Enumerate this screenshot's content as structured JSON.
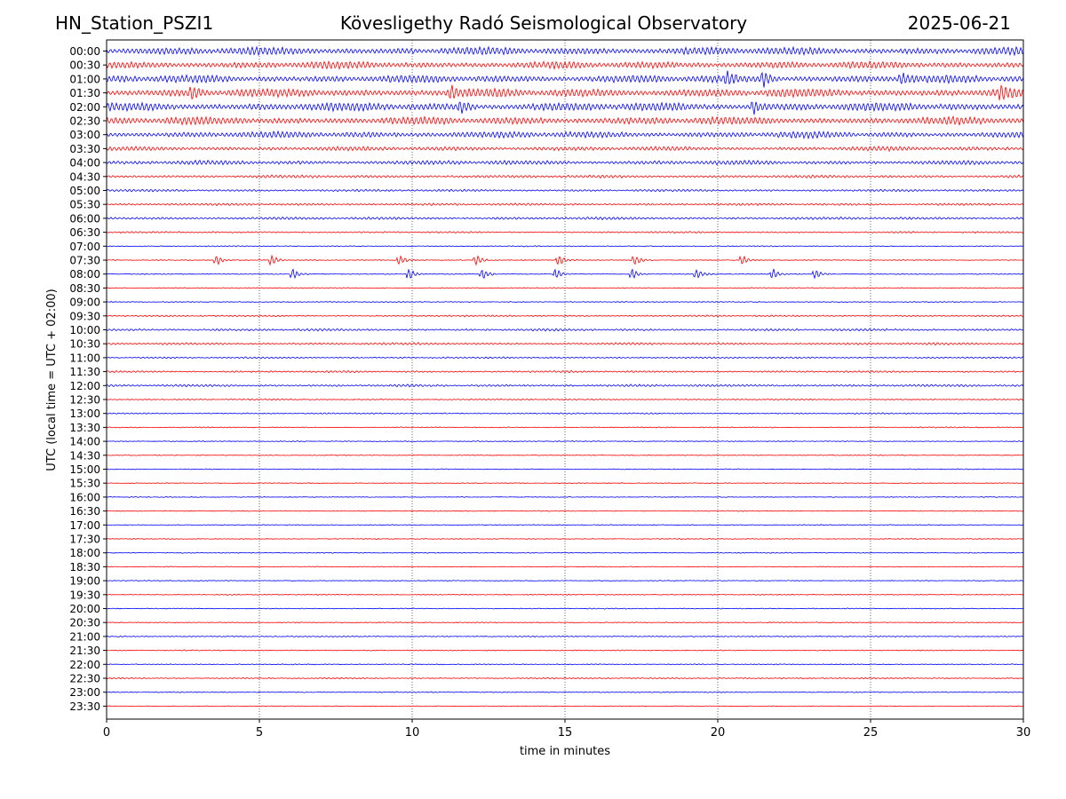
{
  "header": {
    "station": "HN_Station_PSZI1",
    "observatory": "Kövesligethy Radó Seismological Observatory",
    "date": "2025-06-21"
  },
  "chart_data": {
    "type": "line",
    "title": "Kövesligethy Radó Seismological Observatory",
    "xlabel": "time in minutes",
    "ylabel": "UTC (local time = UTC + 02:00)",
    "xlim": [
      0,
      30
    ],
    "xticks": [
      "0",
      "5",
      "10",
      "15",
      "20",
      "25",
      "30"
    ],
    "vertical_gridlines_minutes": [
      5,
      10,
      15,
      20,
      25
    ],
    "grid": "dotted vertical",
    "colors": {
      "even_row": "#0000ff",
      "odd_row": "#ff0000"
    },
    "rows": [
      {
        "label": "00:00",
        "amp": 0.55
      },
      {
        "label": "00:30",
        "amp": 0.5
      },
      {
        "label": "01:00",
        "amp": 0.55
      },
      {
        "label": "01:30",
        "amp": 0.6
      },
      {
        "label": "02:00",
        "amp": 0.6
      },
      {
        "label": "02:30",
        "amp": 0.55
      },
      {
        "label": "03:00",
        "amp": 0.45
      },
      {
        "label": "03:30",
        "amp": 0.3
      },
      {
        "label": "04:00",
        "amp": 0.3
      },
      {
        "label": "04:30",
        "amp": 0.2
      },
      {
        "label": "05:00",
        "amp": 0.15
      },
      {
        "label": "05:30",
        "amp": 0.15
      },
      {
        "label": "06:00",
        "amp": 0.18
      },
      {
        "label": "06:30",
        "amp": 0.1
      },
      {
        "label": "07:00",
        "amp": 0.05
      },
      {
        "label": "07:30",
        "amp": 0.04
      },
      {
        "label": "08:00",
        "amp": 0.04
      },
      {
        "label": "08:30",
        "amp": 0.05
      },
      {
        "label": "09:00",
        "amp": 0.05
      },
      {
        "label": "09:30",
        "amp": 0.1
      },
      {
        "label": "10:00",
        "amp": 0.15
      },
      {
        "label": "10:30",
        "amp": 0.15
      },
      {
        "label": "11:00",
        "amp": 0.1
      },
      {
        "label": "11:30",
        "amp": 0.12
      },
      {
        "label": "12:00",
        "amp": 0.15
      },
      {
        "label": "12:30",
        "amp": 0.08
      },
      {
        "label": "13:00",
        "amp": 0.08
      },
      {
        "label": "13:30",
        "amp": 0.05
      },
      {
        "label": "14:00",
        "amp": 0.04
      },
      {
        "label": "14:30",
        "amp": 0.03
      },
      {
        "label": "15:00",
        "amp": 0.04
      },
      {
        "label": "15:30",
        "amp": 0.03
      },
      {
        "label": "16:00",
        "amp": 0.03
      },
      {
        "label": "16:30",
        "amp": 0.04
      },
      {
        "label": "17:00",
        "amp": 0.04
      },
      {
        "label": "17:30",
        "amp": 0.04
      },
      {
        "label": "18:00",
        "amp": 0.04
      },
      {
        "label": "18:30",
        "amp": 0.03
      },
      {
        "label": "19:00",
        "amp": 0.03
      },
      {
        "label": "19:30",
        "amp": 0.05
      },
      {
        "label": "20:00",
        "amp": 0.04
      },
      {
        "label": "20:30",
        "amp": 0.04
      },
      {
        "label": "21:00",
        "amp": 0.06
      },
      {
        "label": "21:30",
        "amp": 0.05
      },
      {
        "label": "22:00",
        "amp": 0.05
      },
      {
        "label": "22:30",
        "amp": 0.07
      },
      {
        "label": "23:00",
        "amp": 0.05
      },
      {
        "label": "23:30",
        "amp": 0.02
      }
    ],
    "events": [
      {
        "row": "07:30",
        "minutes": [
          3.6,
          5.4,
          9.6,
          12.1,
          14.8,
          17.3,
          20.8
        ]
      },
      {
        "row": "08:00",
        "minutes": [
          6.1,
          9.9,
          12.3,
          14.7,
          17.2,
          19.3,
          21.8,
          23.2
        ]
      },
      {
        "row": "01:00",
        "minutes": [
          20.3,
          21.5,
          26.0
        ]
      },
      {
        "row": "01:30",
        "minutes": [
          2.8,
          11.3,
          29.3
        ]
      },
      {
        "row": "02:00",
        "minutes": [
          11.6,
          21.2
        ]
      }
    ]
  }
}
